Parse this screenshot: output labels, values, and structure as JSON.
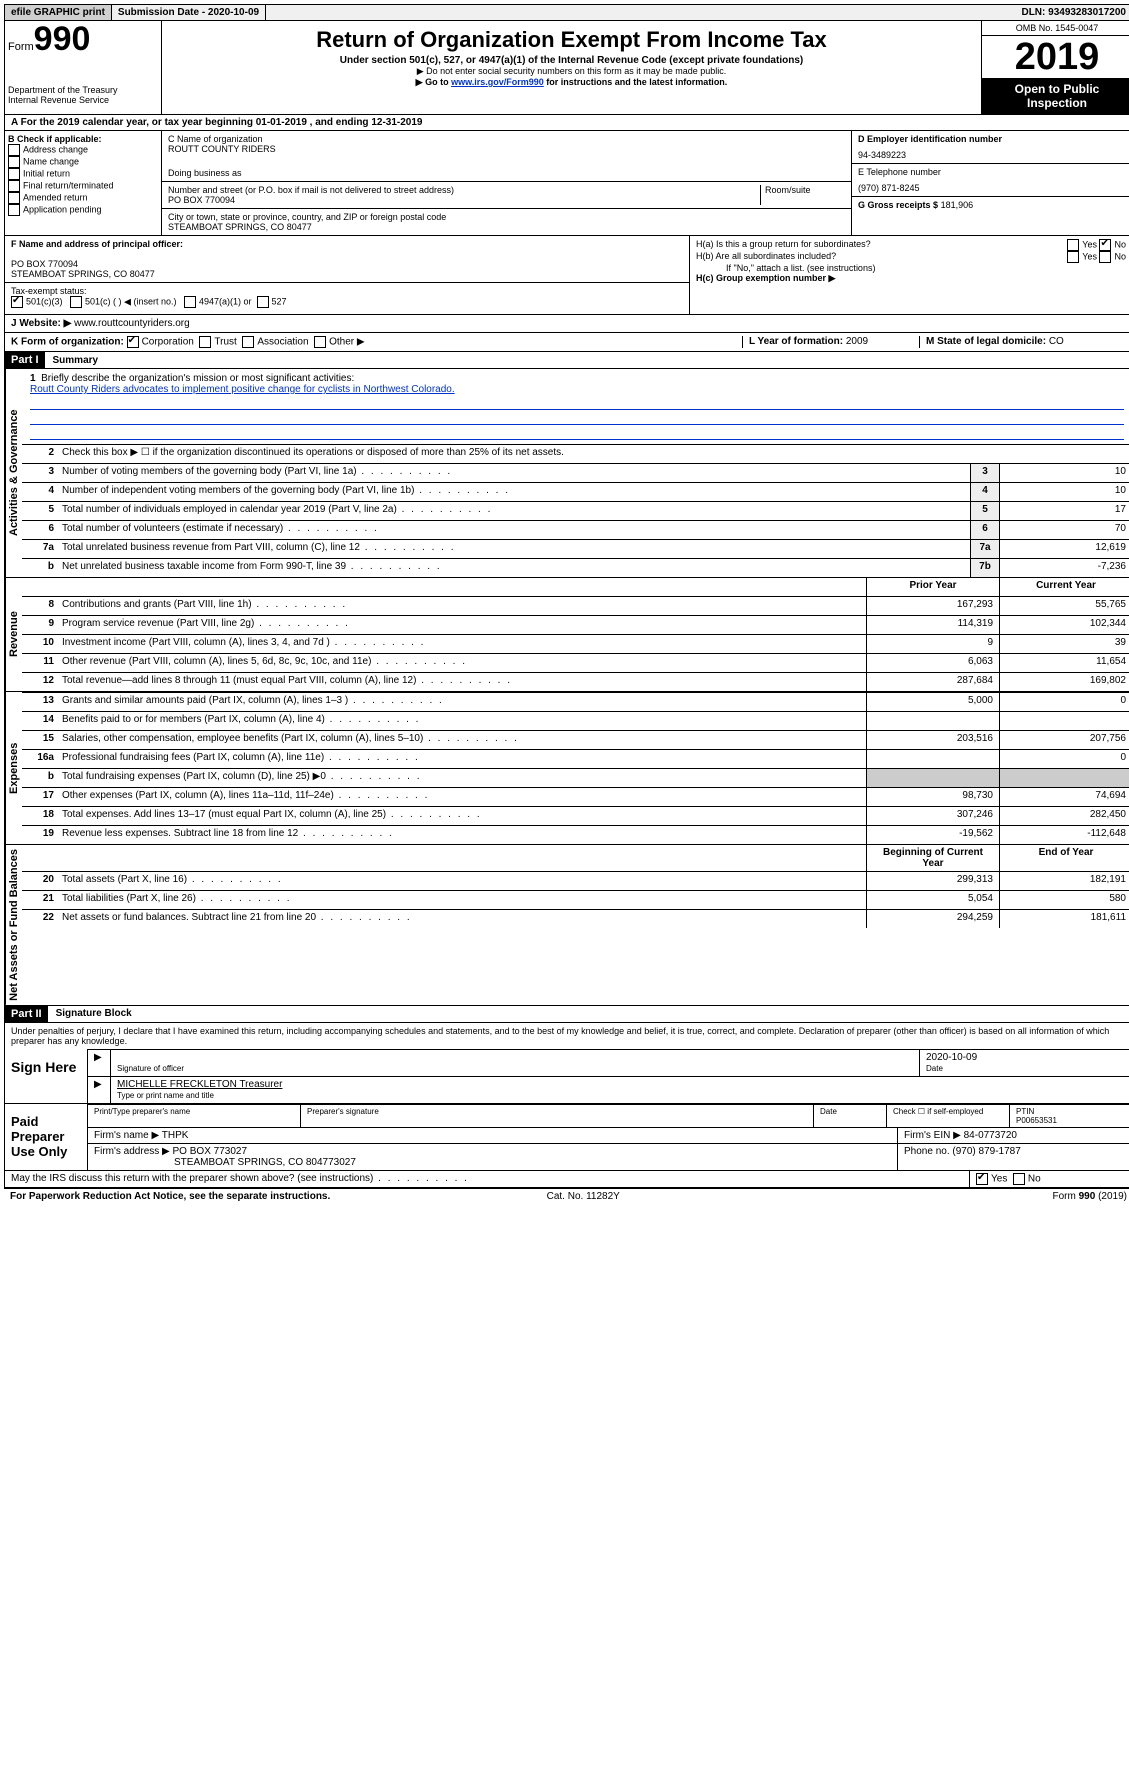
{
  "topbar": {
    "efile": "efile GRAPHIC print",
    "submission_label": "Submission Date - 2020-10-09",
    "dln": "DLN: 93493283017200"
  },
  "header": {
    "form_label": "Form",
    "form_num": "990",
    "dept": "Department of the Treasury\nInternal Revenue Service",
    "title": "Return of Organization Exempt From Income Tax",
    "subtitle": "Under section 501(c), 527, or 4947(a)(1) of the Internal Revenue Code (except private foundations)",
    "note1": "▶ Do not enter social security numbers on this form as it may be made public.",
    "note2_pre": "▶ Go to ",
    "note2_link": "www.irs.gov/Form990",
    "note2_post": " for instructions and the latest information.",
    "omb": "OMB No. 1545-0047",
    "year": "2019",
    "open": "Open to Public Inspection"
  },
  "rowA": "A For the 2019 calendar year, or tax year beginning 01-01-2019    , and ending 12-31-2019",
  "colB": {
    "label": "B Check if applicable:",
    "items": [
      "Address change",
      "Name change",
      "Initial return",
      "Final return/terminated",
      "Amended return",
      "Application pending"
    ]
  },
  "colC": {
    "name_label": "C Name of organization",
    "name": "ROUTT COUNTY RIDERS",
    "dba_label": "Doing business as",
    "addr_label": "Number and street (or P.O. box if mail is not delivered to street address)",
    "room_label": "Room/suite",
    "addr": "PO BOX 770094",
    "city_label": "City or town, state or province, country, and ZIP or foreign postal code",
    "city": "STEAMBOAT SPRINGS, CO  80477"
  },
  "colD": {
    "ein_label": "D Employer identification number",
    "ein": "94-3489223",
    "phone_label": "E Telephone number",
    "phone": "(970) 871-8245",
    "gross_label": "G Gross receipts $",
    "gross": "181,906"
  },
  "sectionF": {
    "f_label": "F Name and address of principal officer:",
    "f_addr1": "PO BOX 770094",
    "f_addr2": "STEAMBOAT SPRINGS, CO  80477",
    "tax_label": "Tax-exempt status:",
    "tax_opts": [
      "501(c)(3)",
      "501(c) (   ) ◀ (insert no.)",
      "4947(a)(1) or",
      "527"
    ],
    "website_label": "J   Website: ▶",
    "website": "www.routtcountyriders.org"
  },
  "sectionH": {
    "ha": "H(a)  Is this a group return for subordinates?",
    "hb": "H(b)  Are all subordinates included?",
    "hb_note": "If \"No,\" attach a list. (see instructions)",
    "hc": "H(c)  Group exemption number ▶",
    "yes": "Yes",
    "no": "No"
  },
  "rowK": {
    "label": "K Form of organization:",
    "opts": [
      "Corporation",
      "Trust",
      "Association",
      "Other ▶"
    ],
    "l_label": "L Year of formation:",
    "l_val": "2009",
    "m_label": "M State of legal domicile:",
    "m_val": "CO"
  },
  "part1": {
    "header": "Part I",
    "title": "Summary",
    "q1": "Briefly describe the organization's mission or most significant activities:",
    "mission": "Routt County Riders advocates to implement positive change for cyclists in Northwest Colorado.",
    "q2": "Check this box ▶ ☐  if the organization discontinued its operations or disposed of more than 25% of its net assets.",
    "lines_gov": [
      {
        "n": "3",
        "t": "Number of voting members of the governing body (Part VI, line 1a)",
        "box": "3",
        "v": "10"
      },
      {
        "n": "4",
        "t": "Number of independent voting members of the governing body (Part VI, line 1b)",
        "box": "4",
        "v": "10"
      },
      {
        "n": "5",
        "t": "Total number of individuals employed in calendar year 2019 (Part V, line 2a)",
        "box": "5",
        "v": "17"
      },
      {
        "n": "6",
        "t": "Total number of volunteers (estimate if necessary)",
        "box": "6",
        "v": "70"
      },
      {
        "n": "7a",
        "t": "Total unrelated business revenue from Part VIII, column (C), line 12",
        "box": "7a",
        "v": "12,619"
      },
      {
        "n": "b",
        "t": "Net unrelated business taxable income from Form 990-T, line 39",
        "box": "7b",
        "v": "-7,236"
      }
    ],
    "col_prior": "Prior Year",
    "col_current": "Current Year",
    "lines_rev": [
      {
        "n": "8",
        "t": "Contributions and grants (Part VIII, line 1h)",
        "p": "167,293",
        "c": "55,765"
      },
      {
        "n": "9",
        "t": "Program service revenue (Part VIII, line 2g)",
        "p": "114,319",
        "c": "102,344"
      },
      {
        "n": "10",
        "t": "Investment income (Part VIII, column (A), lines 3, 4, and 7d )",
        "p": "9",
        "c": "39"
      },
      {
        "n": "11",
        "t": "Other revenue (Part VIII, column (A), lines 5, 6d, 8c, 9c, 10c, and 11e)",
        "p": "6,063",
        "c": "11,654"
      },
      {
        "n": "12",
        "t": "Total revenue—add lines 8 through 11 (must equal Part VIII, column (A), line 12)",
        "p": "287,684",
        "c": "169,802"
      }
    ],
    "lines_exp": [
      {
        "n": "13",
        "t": "Grants and similar amounts paid (Part IX, column (A), lines 1–3 )",
        "p": "5,000",
        "c": "0"
      },
      {
        "n": "14",
        "t": "Benefits paid to or for members (Part IX, column (A), line 4)",
        "p": "",
        "c": ""
      },
      {
        "n": "15",
        "t": "Salaries, other compensation, employee benefits (Part IX, column (A), lines 5–10)",
        "p": "203,516",
        "c": "207,756"
      },
      {
        "n": "16a",
        "t": "Professional fundraising fees (Part IX, column (A), line 11e)",
        "p": "",
        "c": "0"
      },
      {
        "n": "b",
        "t": "Total fundraising expenses (Part IX, column (D), line 25) ▶0",
        "p": "—shade—",
        "c": "—shade—"
      },
      {
        "n": "17",
        "t": "Other expenses (Part IX, column (A), lines 11a–11d, 11f–24e)",
        "p": "98,730",
        "c": "74,694"
      },
      {
        "n": "18",
        "t": "Total expenses. Add lines 13–17 (must equal Part IX, column (A), line 25)",
        "p": "307,246",
        "c": "282,450"
      },
      {
        "n": "19",
        "t": "Revenue less expenses. Subtract line 18 from line 12",
        "p": "-19,562",
        "c": "-112,648"
      }
    ],
    "col_begin": "Beginning of Current Year",
    "col_end": "End of Year",
    "lines_net": [
      {
        "n": "20",
        "t": "Total assets (Part X, line 16)",
        "p": "299,313",
        "c": "182,191"
      },
      {
        "n": "21",
        "t": "Total liabilities (Part X, line 26)",
        "p": "5,054",
        "c": "580"
      },
      {
        "n": "22",
        "t": "Net assets or fund balances. Subtract line 21 from line 20",
        "p": "294,259",
        "c": "181,611"
      }
    ],
    "tab_gov": "Activities & Governance",
    "tab_rev": "Revenue",
    "tab_exp": "Expenses",
    "tab_net": "Net Assets or Fund Balances"
  },
  "part2": {
    "header": "Part II",
    "title": "Signature Block",
    "penalty": "Under penalties of perjury, I declare that I have examined this return, including accompanying schedules and statements, and to the best of my knowledge and belief, it is true, correct, and complete. Declaration of preparer (other than officer) is based on all information of which preparer has any knowledge.",
    "sign_here": "Sign Here",
    "sig_officer": "Signature of officer",
    "sig_date": "2020-10-09",
    "date_label": "Date",
    "officer_name": "MICHELLE FRECKLETON Treasurer",
    "officer_label": "Type or print name and title",
    "paid": "Paid Preparer Use Only",
    "pp_name_label": "Print/Type preparer's name",
    "pp_sig_label": "Preparer's signature",
    "pp_date_label": "Date",
    "pp_check": "Check ☐ if self-employed",
    "ptin_label": "PTIN",
    "ptin": "P00653531",
    "firm_name_label": "Firm's name   ▶",
    "firm_name": "THPK",
    "firm_ein_label": "Firm's EIN ▶",
    "firm_ein": "84-0773720",
    "firm_addr_label": "Firm's address ▶",
    "firm_addr1": "PO BOX 773027",
    "firm_addr2": "STEAMBOAT SPRINGS, CO  804773027",
    "firm_phone_label": "Phone no.",
    "firm_phone": "(970) 879-1787",
    "discuss": "May the IRS discuss this return with the preparer shown above? (see instructions)",
    "yes": "Yes",
    "no": "No"
  },
  "footer": {
    "left": "For Paperwork Reduction Act Notice, see the separate instructions.",
    "mid": "Cat. No. 11282Y",
    "right": "Form 990 (2019)"
  }
}
